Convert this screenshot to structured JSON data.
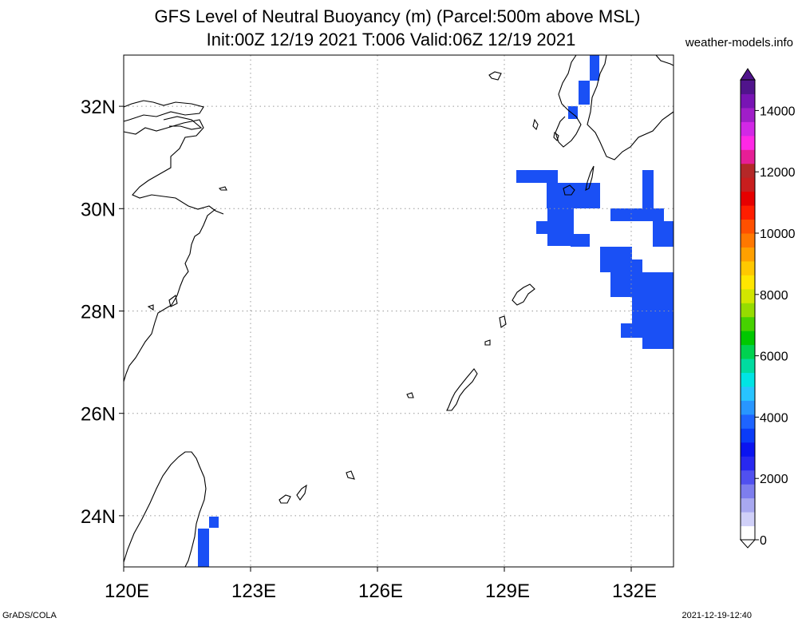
{
  "header": {
    "title_line1": "GFS Level of Neutral Buoyancy (m) (Parcel:500m above MSL)",
    "title_line2": "Init:00Z 12/19 2021 T:006 Valid:06Z 12/19 2021",
    "site": "weather-models.info"
  },
  "footer": {
    "credit": "GrADS/COLA",
    "timestamp": "2021-12-19-12:40"
  },
  "map": {
    "lon_range": [
      120,
      133
    ],
    "lat_range": [
      23,
      33
    ],
    "lon_ticks": [
      {
        "value": 120,
        "label": "120E"
      },
      {
        "value": 123,
        "label": "123E"
      },
      {
        "value": 126,
        "label": "126E"
      },
      {
        "value": 129,
        "label": "129E"
      },
      {
        "value": 132,
        "label": "132E"
      }
    ],
    "lat_ticks": [
      {
        "value": 24,
        "label": "24N"
      },
      {
        "value": 26,
        "label": "26N"
      },
      {
        "value": 28,
        "label": "28N"
      },
      {
        "value": 30,
        "label": "30N"
      },
      {
        "value": 32,
        "label": "32N"
      }
    ],
    "grid": "dotted",
    "filled_color": "#1a50f5",
    "filled_color_light": "#2b6af8"
  },
  "colorbar": {
    "min": 0,
    "max": 15000,
    "labels": [
      "0",
      "2000",
      "4000",
      "6000",
      "8000",
      "10000",
      "12000",
      "14000"
    ],
    "colors": [
      "#ffffff",
      "#d0d0f8",
      "#a8a8f0",
      "#7e7eee",
      "#5050f0",
      "#2828f0",
      "#0a14f0",
      "#0a3cf8",
      "#1e64ff",
      "#2896ff",
      "#28c4ff",
      "#00e4e4",
      "#00dca0",
      "#00d250",
      "#00c800",
      "#46d200",
      "#96dc00",
      "#d2e600",
      "#ffe600",
      "#ffc800",
      "#ffa000",
      "#ff7800",
      "#ff5000",
      "#ff1e00",
      "#e60000",
      "#c81e1e",
      "#b42828",
      "#e61e96",
      "#ff28e6",
      "#d228e6",
      "#a01ec8",
      "#7814b4",
      "#50148c"
    ]
  }
}
